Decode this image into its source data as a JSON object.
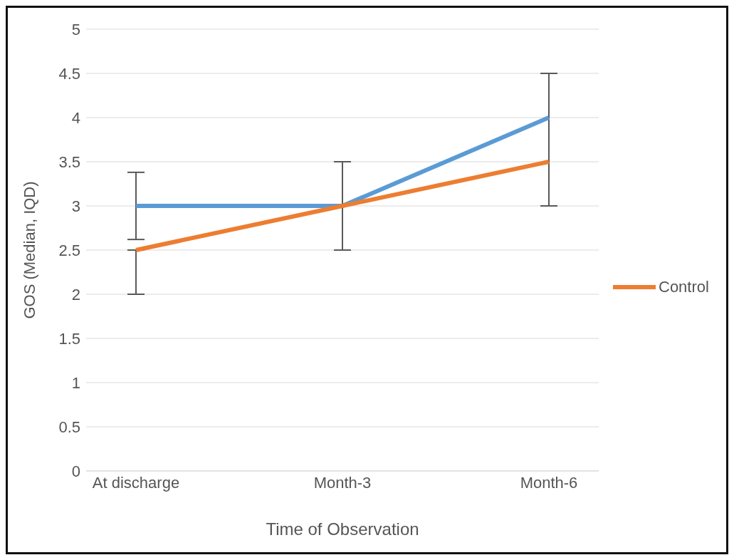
{
  "chart_data": {
    "type": "line",
    "xlabel": "Time of Observation",
    "ylabel": "GOS (Median, IQD)",
    "categories": [
      "At discharge",
      "Month-3",
      "Month-6"
    ],
    "series": [
      {
        "color": "#5b9bd5",
        "values": [
          3,
          3,
          4
        ],
        "errors": [
          [
            2.62,
            3.38
          ],
          null,
          [
            3,
            4.5
          ]
        ]
      },
      {
        "name": "Control",
        "color": "#ed7d31",
        "values": [
          2.5,
          3,
          3.5
        ],
        "errors": [
          [
            2,
            2.5
          ],
          [
            2.5,
            3.5
          ],
          null
        ]
      }
    ],
    "ylim": [
      0,
      5
    ],
    "yticks": [
      0,
      0.5,
      1,
      1.5,
      2,
      2.5,
      3,
      3.5,
      4,
      4.5,
      5
    ],
    "grid": "y",
    "legend": "right",
    "marker": "none",
    "line_style": "solid"
  }
}
